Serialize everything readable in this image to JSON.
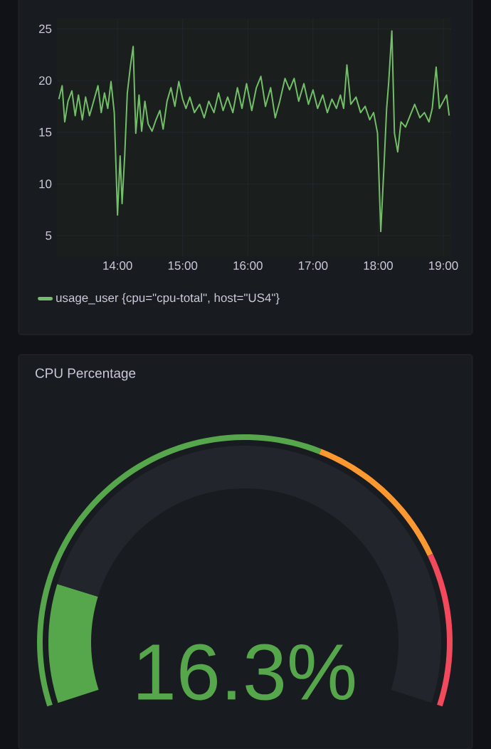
{
  "chart_data": [
    {
      "type": "line",
      "x": [
        13.1,
        13.15,
        13.19,
        13.24,
        13.3,
        13.35,
        13.4,
        13.46,
        13.51,
        13.57,
        13.62,
        13.7,
        13.75,
        13.8,
        13.85,
        13.9,
        13.95,
        14.0,
        14.04,
        14.07,
        14.11,
        14.15,
        14.2,
        14.24,
        14.28,
        14.33,
        14.37,
        14.42,
        14.47,
        14.53,
        14.59,
        14.65,
        14.7,
        14.76,
        14.82,
        14.88,
        14.94,
        15.0,
        15.05,
        15.11,
        15.18,
        15.26,
        15.33,
        15.4,
        15.48,
        15.55,
        15.62,
        15.69,
        15.77,
        15.84,
        15.91,
        15.98,
        16.06,
        16.13,
        16.2,
        16.27,
        16.35,
        16.42,
        16.49,
        16.57,
        16.64,
        16.71,
        16.78,
        16.86,
        16.93,
        17.0,
        17.07,
        17.15,
        17.22,
        17.29,
        17.36,
        17.42,
        17.47,
        17.52,
        17.58,
        17.66,
        17.73,
        17.8,
        17.87,
        17.93,
        17.99,
        18.02,
        18.04,
        18.09,
        18.13,
        18.16,
        18.21,
        18.25,
        18.3,
        18.35,
        18.42,
        18.49,
        18.56,
        18.64,
        18.71,
        18.78,
        18.83,
        18.89,
        18.94,
        19.0,
        19.05,
        19.09
      ],
      "series": [
        {
          "name": "usage_user {cpu=\"cpu-total\", host=\"US4\"}",
          "color": "#73bf69",
          "values": [
            18.2,
            19.5,
            16.0,
            18.0,
            19.0,
            16.6,
            18.6,
            16.2,
            18.4,
            16.6,
            17.7,
            19.5,
            16.9,
            18.8,
            17.3,
            19.9,
            16.9,
            7.0,
            12.7,
            8.1,
            12.7,
            18.8,
            21.5,
            23.3,
            14.9,
            18.6,
            15.1,
            18.0,
            15.8,
            15.1,
            16.2,
            17.1,
            15.3,
            18.0,
            19.3,
            17.5,
            19.9,
            18.2,
            17.3,
            18.4,
            16.9,
            17.7,
            16.4,
            18.0,
            16.9,
            18.8,
            17.1,
            18.4,
            16.9,
            19.3,
            17.3,
            19.7,
            17.1,
            19.3,
            20.4,
            17.5,
            19.3,
            16.4,
            18.0,
            20.2,
            19.1,
            20.2,
            18.0,
            19.7,
            17.7,
            19.1,
            17.3,
            18.6,
            16.9,
            18.2,
            17.3,
            18.6,
            17.3,
            21.5,
            17.7,
            18.4,
            16.9,
            17.5,
            16.2,
            16.9,
            14.9,
            9.2,
            5.4,
            11.8,
            17.3,
            19.7,
            24.8,
            14.9,
            13.1,
            16.0,
            15.5,
            16.6,
            17.7,
            16.4,
            16.9,
            16.0,
            17.3,
            21.3,
            17.3,
            18.0,
            18.6,
            16.6
          ]
        }
      ],
      "xlim": [
        13.07,
        19.12
      ],
      "ylim": [
        3,
        26
      ],
      "xticks": [
        {
          "value": 14,
          "label": "14:00"
        },
        {
          "value": 15,
          "label": "15:00"
        },
        {
          "value": 16,
          "label": "16:00"
        },
        {
          "value": 17,
          "label": "17:00"
        },
        {
          "value": 18,
          "label": "18:00"
        },
        {
          "value": 19,
          "label": "19:00"
        }
      ],
      "yticks": [
        5,
        10,
        15,
        20,
        25
      ],
      "grid": true,
      "legend": "bottom",
      "line_style": "solid",
      "marker": "none"
    },
    {
      "type": "donut",
      "title": "CPU Percentage",
      "annotations": [
        "16.3%"
      ],
      "series": [
        {
          "values": [
            16.3,
            83.7
          ],
          "colors": [
            "#56a64b",
            "#22252b"
          ]
        },
        {
          "values": [
            60,
            20,
            20
          ],
          "colors": [
            "#56a64b",
            "#ff9830",
            "#f2495c"
          ]
        }
      ]
    }
  ]
}
